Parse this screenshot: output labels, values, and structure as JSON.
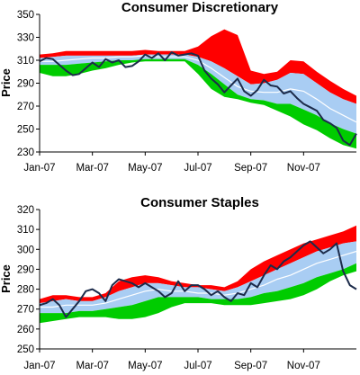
{
  "colors": {
    "upper_band": "#ff0000",
    "mid_band": "#a9cdf3",
    "lower_band": "#00cc00",
    "center_line": "#ffffff",
    "price_line": "#1c2b4a",
    "axis": "#000000"
  },
  "chart_data": [
    {
      "type": "line",
      "title": "Consumer Discretionary",
      "xlabel": "",
      "ylabel": "Price",
      "ylim": [
        230,
        350
      ],
      "yticks": [
        "230",
        "250",
        "270",
        "290",
        "310",
        "330",
        "350"
      ],
      "xlim": [
        0,
        12
      ],
      "xticks": [
        {
          "label": "Jan-07",
          "x": 0
        },
        {
          "label": "Mar-07",
          "x": 2
        },
        {
          "label": "May-07",
          "x": 4
        },
        {
          "label": "Jul-07",
          "x": 6
        },
        {
          "label": "Sep-07",
          "x": 8
        },
        {
          "label": "Nov-07",
          "x": 10
        }
      ],
      "grid": false,
      "legend": "none",
      "bands_x": [
        0,
        0.5,
        1,
        1.5,
        2,
        2.5,
        3,
        3.5,
        4,
        4.5,
        5,
        5.5,
        6,
        6.5,
        7,
        7.5,
        8,
        8.5,
        9,
        9.5,
        10,
        10.5,
        11,
        11.5,
        12
      ],
      "series": [
        {
          "role": "upper",
          "values": [
            315,
            316,
            318,
            318,
            318,
            318,
            318,
            318,
            319,
            318,
            318,
            318,
            322,
            331,
            337,
            332,
            301,
            298,
            300,
            310,
            309,
            300,
            292,
            285,
            279
          ]
        },
        {
          "role": "mid_upper",
          "values": [
            312,
            313,
            314,
            314,
            314,
            314,
            314,
            314,
            315,
            315,
            315,
            315,
            313,
            309,
            303,
            296,
            289,
            290,
            293,
            299,
            298,
            290,
            282,
            276,
            272
          ]
        },
        {
          "role": "center",
          "values": [
            309,
            309,
            310,
            311,
            312,
            312,
            313,
            313,
            314,
            313,
            313,
            313,
            310,
            303,
            295,
            287,
            283,
            282,
            282,
            285,
            283,
            276,
            268,
            262,
            256
          ]
        },
        {
          "role": "mid_lower",
          "values": [
            306,
            306,
            306,
            307,
            308,
            309,
            310,
            310,
            311,
            311,
            311,
            311,
            306,
            298,
            289,
            280,
            276,
            275,
            272,
            272,
            267,
            262,
            255,
            250,
            246
          ]
        },
        {
          "role": "lower",
          "values": [
            299,
            296,
            296,
            298,
            301,
            303,
            306,
            308,
            309,
            309,
            309,
            309,
            298,
            285,
            278,
            276,
            273,
            271,
            266,
            261,
            254,
            249,
            242,
            236,
            233
          ]
        },
        {
          "role": "price",
          "x": [
            0,
            0.25,
            0.5,
            0.75,
            1,
            1.25,
            1.5,
            1.75,
            2,
            2.25,
            2.5,
            2.75,
            3,
            3.25,
            3.5,
            3.75,
            4,
            4.25,
            4.5,
            4.75,
            5,
            5.25,
            5.5,
            5.75,
            6,
            6.25,
            6.5,
            6.75,
            7,
            7.25,
            7.5,
            7.75,
            8,
            8.25,
            8.5,
            8.75,
            9,
            9.25,
            9.5,
            9.75,
            10,
            10.25,
            10.5,
            10.75,
            11,
            11.25,
            11.5,
            11.75,
            12
          ],
          "values": [
            309,
            312,
            311,
            306,
            301,
            297,
            298,
            303,
            308,
            304,
            311,
            308,
            310,
            304,
            305,
            309,
            315,
            312,
            316,
            310,
            317,
            314,
            315,
            316,
            314,
            301,
            294,
            289,
            282,
            288,
            294,
            283,
            279,
            284,
            293,
            288,
            287,
            281,
            283,
            277,
            272,
            269,
            266,
            258,
            255,
            251,
            240,
            236,
            246
          ]
        }
      ]
    },
    {
      "type": "line",
      "title": "Consumer Staples",
      "xlabel": "",
      "ylabel": "Price",
      "ylim": [
        250,
        320
      ],
      "yticks": [
        "250",
        "260",
        "270",
        "280",
        "290",
        "300",
        "310",
        "320"
      ],
      "xlim": [
        0,
        12
      ],
      "xticks": [
        {
          "label": "Jan-07",
          "x": 0
        },
        {
          "label": "Mar-07",
          "x": 2
        },
        {
          "label": "May-07",
          "x": 4
        },
        {
          "label": "Jul-07",
          "x": 6
        },
        {
          "label": "Sep-07",
          "x": 8
        },
        {
          "label": "Nov-07",
          "x": 10
        }
      ],
      "grid": false,
      "legend": "none",
      "bands_x": [
        0,
        0.5,
        1,
        1.5,
        2,
        2.5,
        3,
        3.5,
        4,
        4.5,
        5,
        5.5,
        6,
        6.5,
        7,
        7.5,
        8,
        8.5,
        9,
        9.5,
        10,
        10.5,
        11,
        11.5,
        12
      ],
      "series": [
        {
          "role": "upper",
          "values": [
            275,
            277,
            277,
            276,
            276,
            278,
            284,
            286,
            287,
            286,
            284,
            283,
            282,
            282,
            281,
            284,
            290,
            294,
            297,
            300,
            303,
            305,
            307,
            309,
            312
          ]
        },
        {
          "role": "mid_upper",
          "values": [
            273,
            274,
            275,
            274,
            274,
            276,
            279,
            281,
            283,
            283,
            282,
            281,
            281,
            280,
            279,
            281,
            284,
            287,
            290,
            293,
            296,
            299,
            301,
            303,
            304
          ]
        },
        {
          "role": "center",
          "values": [
            271,
            271,
            272,
            272,
            272,
            273,
            275,
            277,
            279,
            280,
            279,
            279,
            278,
            278,
            277,
            278,
            280,
            282,
            285,
            287,
            290,
            293,
            295,
            297,
            299
          ]
        },
        {
          "role": "mid_lower",
          "values": [
            268,
            268,
            268,
            269,
            269,
            270,
            271,
            272,
            274,
            276,
            276,
            276,
            276,
            275,
            275,
            275,
            276,
            278,
            279,
            281,
            283,
            286,
            288,
            290,
            293
          ]
        },
        {
          "role": "lower",
          "values": [
            263,
            264,
            265,
            266,
            266,
            266,
            265,
            265,
            266,
            268,
            271,
            273,
            273,
            273,
            272,
            272,
            272,
            273,
            274,
            275,
            277,
            280,
            284,
            287,
            289
          ]
        },
        {
          "role": "price",
          "x": [
            0,
            0.25,
            0.5,
            0.75,
            1,
            1.25,
            1.5,
            1.75,
            2,
            2.25,
            2.5,
            2.75,
            3,
            3.25,
            3.5,
            3.75,
            4,
            4.25,
            4.5,
            4.75,
            5,
            5.25,
            5.5,
            5.75,
            6,
            6.25,
            6.5,
            6.75,
            7,
            7.25,
            7.5,
            7.75,
            8,
            8.25,
            8.5,
            8.75,
            9,
            9.25,
            9.5,
            9.75,
            10,
            10.25,
            10.5,
            10.75,
            11,
            11.25,
            11.5,
            11.75,
            12
          ],
          "values": [
            272,
            273,
            275,
            272,
            266,
            270,
            274,
            279,
            280,
            278,
            274,
            282,
            285,
            284,
            283,
            281,
            283,
            281,
            279,
            276,
            278,
            284,
            279,
            282,
            282,
            280,
            277,
            279,
            276,
            274,
            278,
            277,
            283,
            281,
            287,
            292,
            290,
            294,
            296,
            299,
            302,
            304,
            301,
            298,
            300,
            303,
            289,
            282,
            280
          ]
        }
      ]
    }
  ]
}
